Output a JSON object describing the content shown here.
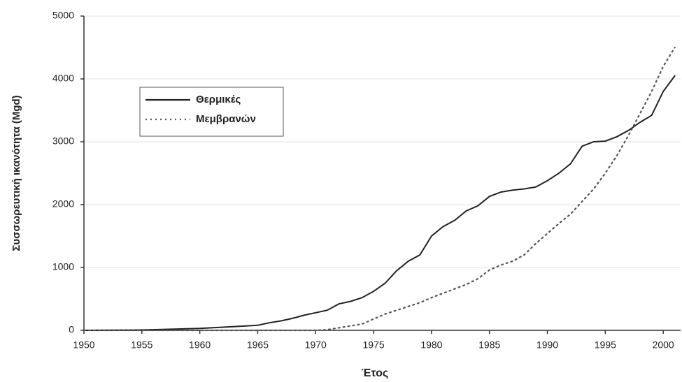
{
  "chart_data": {
    "type": "line",
    "xlabel": "Έτος",
    "ylabel": "Συσσωρευτική ικανότητα (Mgd)",
    "x": [
      1950,
      1955,
      1960,
      1961,
      1962,
      1963,
      1964,
      1965,
      1966,
      1967,
      1968,
      1969,
      1970,
      1971,
      1972,
      1973,
      1974,
      1975,
      1976,
      1977,
      1978,
      1979,
      1980,
      1981,
      1982,
      1983,
      1984,
      1985,
      1986,
      1987,
      1988,
      1989,
      1990,
      1991,
      1992,
      1993,
      1994,
      1995,
      1996,
      1997,
      1998,
      1999,
      2000,
      2001
    ],
    "series": [
      {
        "name": "Θερμικές",
        "color": "#222222",
        "dash": "solid",
        "values": [
          0,
          5,
          30,
          40,
          50,
          60,
          70,
          80,
          120,
          150,
          190,
          240,
          280,
          320,
          420,
          460,
          520,
          620,
          750,
          950,
          1100,
          1200,
          1500,
          1650,
          1750,
          1900,
          1980,
          2130,
          2200,
          2230,
          2250,
          2280,
          2380,
          2500,
          2650,
          2930,
          3000,
          3010,
          3080,
          3180,
          3310,
          3420,
          3800,
          4050
        ]
      },
      {
        "name": "Μεμβρανών",
        "color": "#555555",
        "dash": "dotted",
        "values": [
          0,
          0,
          0,
          0,
          0,
          0,
          0,
          0,
          0,
          0,
          0,
          0,
          0,
          10,
          40,
          70,
          100,
          180,
          260,
          320,
          380,
          440,
          520,
          590,
          660,
          730,
          820,
          960,
          1040,
          1100,
          1200,
          1380,
          1540,
          1700,
          1850,
          2050,
          2250,
          2500,
          2780,
          3100,
          3450,
          3800,
          4200,
          4500
        ]
      }
    ],
    "xlim": [
      1950,
      2001.5
    ],
    "xticks": [
      1950,
      1955,
      1960,
      1965,
      1970,
      1975,
      1980,
      1985,
      1990,
      1995,
      2000
    ],
    "ylim": [
      0,
      5000
    ],
    "yticks": [
      0,
      1000,
      2000,
      3000,
      4000,
      5000
    ],
    "grid": true,
    "legend": "upper left"
  }
}
